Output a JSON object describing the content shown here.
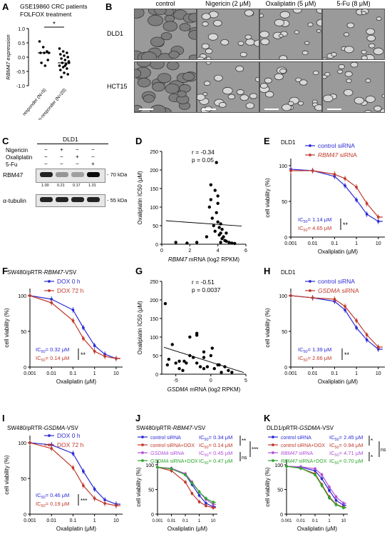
{
  "panels": {
    "A": {
      "label": "A",
      "title_line1": "GSE19860 CRC patients",
      "title_line2": "FOLFOX treatment",
      "ylabel": "RBM47 expression",
      "sig": "*",
      "yticks": [
        "1.0",
        "0.5",
        "0.0",
        "-0.5",
        "-1.0"
      ],
      "groups": [
        "responder (N=9)",
        "non-responder (N=20)"
      ]
    },
    "B": {
      "label": "B",
      "columns": [
        "control",
        "Nigericin (2 μM)",
        "Oxaliplatin (5 μM)",
        "5-Fu (8 μM)"
      ],
      "rows": [
        "DLD1",
        "HCT15"
      ]
    },
    "C": {
      "label": "C",
      "cell_line": "DLD1",
      "treatments": [
        "Nigericin",
        "Oxaliplatin",
        "5-Fu"
      ],
      "signs": [
        [
          "−",
          "+",
          "−",
          "−"
        ],
        [
          "−",
          "−",
          "+",
          "−"
        ],
        [
          "−",
          "−",
          "−",
          "+"
        ]
      ],
      "bands": [
        "RBM47",
        "α-tubulin"
      ],
      "kda": [
        "70 kDa",
        "55 kDa"
      ],
      "quant": [
        "1.00",
        "0.21",
        "0.17",
        "1.31"
      ]
    },
    "D": {
      "label": "D",
      "r": "r = -0.34",
      "p": "p = 0.05",
      "ylabel": "Oxaliplatin IC50 (μM)",
      "xlabel": "RBM47 mRNA (log2 RPKM)",
      "xticks": [
        "0",
        "2",
        "4",
        "6"
      ],
      "yticks": [
        "0",
        "50",
        "100",
        "150",
        "200",
        "250"
      ]
    },
    "E": {
      "label": "E",
      "cell": "DLD1",
      "legend": [
        "control siRNA",
        "RBM47 siRNA"
      ],
      "ic1": "IC50= 1.14 μM",
      "ic2": "IC50= 4.65 μM",
      "sig": "**"
    },
    "F": {
      "label": "F",
      "cell": "SW480/pRTR-RBM47-VSV",
      "legend": [
        "DOX 0 h",
        "DOX 72 h"
      ],
      "ic1": "IC50= 0.32 μM",
      "ic2": "IC50= 0.14 μM",
      "sig": "**"
    },
    "G": {
      "label": "G",
      "r": "r = -0.51",
      "p": "p = 0.0037",
      "ylabel": "Oxaliplatin IC50 (μM)",
      "xlabel": "GSDMA mRNA (log2 RPKM)",
      "xticks": [
        "-5",
        "0",
        "5"
      ],
      "yticks": [
        "0",
        "50",
        "100",
        "150",
        "200",
        "250"
      ]
    },
    "H": {
      "label": "H",
      "cell": "DLD1",
      "legend": [
        "control siRNA",
        "GSDMA siRNA"
      ],
      "ic1": "IC50= 1.39 μM",
      "ic2": "IC50= 2.66 μM",
      "sig": "**"
    },
    "I": {
      "label": "I",
      "cell": "SW480/pRTR-GSDMA-VSV",
      "legend": [
        "DOX 0 h",
        "DOX 72 h"
      ],
      "ic1": "IC50= 0.46 μM",
      "ic2": "IC50= 0.19 μM",
      "sig": "***"
    },
    "J": {
      "label": "J",
      "cell": "SW480/pRTR-RBM47-VSV",
      "legend": [
        "control siRNA",
        "control siRNA+DOX",
        "GSDMA siRNA",
        "GSDMA siRNA+DOX"
      ],
      "ics": [
        "IC50= 0.34 μM",
        "IC50= 0.14 μM",
        "IC50= 0.45 μM",
        "IC50= 0.47 μM"
      ],
      "sigs": [
        "**",
        "ns",
        "***"
      ]
    },
    "K": {
      "label": "K",
      "cell": "DLD1/pRTR-GSDMA-VSV",
      "legend": [
        "control siRNA",
        "control siRNA+DOX",
        "RBM47 siRNA",
        "RBM47 siRNA+DOX"
      ],
      "ics": [
        "IC50= 2.45 μM",
        "IC50= 0.94 μM",
        "IC50= 4.71 μM",
        "IC50= 0.70 μM"
      ],
      "sigs": [
        "*",
        "*",
        "ns"
      ]
    }
  },
  "common": {
    "viability_label": "cell viability (%)",
    "oxa_label": "Oxaliplatin (μM)",
    "xticks": [
      "0.001",
      "0.01",
      "0.1",
      "1",
      "10"
    ],
    "yticks": [
      "0",
      "50",
      "100"
    ]
  },
  "colors": {
    "blue": "#2b2bd6",
    "red": "#c0392b",
    "purple": "#b04fd6",
    "green": "#2aa62a"
  },
  "chart_data": [
    {
      "type": "scatter",
      "panel": "A",
      "categories": [
        "responder (N=9)",
        "non-responder (N=20)"
      ],
      "series": [
        {
          "name": "responder (N=9)",
          "values": [
            0.55,
            0.35,
            0.2,
            0.15,
            0.15,
            -0.1,
            -0.2,
            -0.3,
            0.15
          ]
        },
        {
          "name": "non-responder (N=20)",
          "values": [
            0.3,
            0.2,
            0.15,
            0.1,
            0.05,
            0.0,
            -0.05,
            -0.1,
            -0.15,
            -0.2,
            -0.25,
            -0.3,
            -0.35,
            -0.4,
            -0.45,
            -0.55,
            -0.6,
            -0.7,
            -0.3,
            -0.2
          ]
        }
      ],
      "ylim": [
        -1,
        1
      ]
    },
    {
      "type": "scatter",
      "panel": "D",
      "x": [
        1,
        1.8,
        2.5,
        3.2,
        3.4,
        3.5,
        3.6,
        3.7,
        3.8,
        3.8,
        3.9,
        4.0,
        4.0,
        4.1,
        4.1,
        4.2,
        4.2,
        4.3,
        4.3,
        4.4,
        4.5,
        4.6,
        4.8,
        5.0,
        5.2,
        3.5,
        3.9,
        4.0,
        4.6,
        4.2
      ],
      "y": [
        5,
        3,
        5,
        20,
        100,
        120,
        70,
        50,
        35,
        145,
        220,
        110,
        60,
        45,
        25,
        30,
        55,
        40,
        15,
        20,
        10,
        8,
        5,
        3,
        2,
        160,
        85,
        130,
        30,
        5
      ],
      "xlim": [
        0,
        6
      ],
      "ylim": [
        0,
        250
      ]
    },
    {
      "type": "scatter",
      "panel": "G",
      "x": [
        -6.5,
        -6,
        -5.5,
        -5,
        -4.5,
        -4,
        -3.5,
        -3,
        -3,
        -2.5,
        -2,
        -2,
        -1.5,
        -1,
        -1,
        -0.5,
        0,
        0.5,
        1,
        1.5,
        2,
        2.5,
        3,
        -2,
        -1,
        -6.2,
        0.2,
        -3.8,
        -4.5,
        1.2
      ],
      "y": [
        190,
        40,
        80,
        30,
        35,
        10,
        30,
        100,
        50,
        45,
        30,
        110,
        20,
        60,
        45,
        20,
        50,
        15,
        25,
        5,
        20,
        10,
        5,
        105,
        15,
        25,
        70,
        35,
        15,
        25
      ],
      "xlim": [
        -7,
        5
      ],
      "ylim": [
        0,
        250
      ]
    },
    {
      "type": "line",
      "panel": "E",
      "x": [
        0.001,
        0.01,
        0.1,
        0.3,
        1,
        3,
        10
      ],
      "series": [
        {
          "name": "control siRNA",
          "values": [
            95,
            93,
            85,
            72,
            52,
            32,
            22
          ]
        },
        {
          "name": "RBM47 siRNA",
          "values": [
            93,
            93,
            88,
            82,
            70,
            47,
            28
          ]
        }
      ],
      "ylim": [
        0,
        110
      ]
    },
    {
      "type": "line",
      "panel": "F",
      "x": [
        0.001,
        0.01,
        0.1,
        0.3,
        1,
        3,
        10
      ],
      "series": [
        {
          "name": "DOX 0 h",
          "values": [
            100,
            95,
            80,
            55,
            30,
            18,
            12
          ]
        },
        {
          "name": "DOX 72 h",
          "values": [
            100,
            90,
            65,
            40,
            22,
            15,
            12
          ]
        }
      ],
      "ylim": [
        0,
        110
      ]
    },
    {
      "type": "line",
      "panel": "H",
      "x": [
        0.001,
        0.01,
        0.1,
        0.3,
        1,
        3,
        10
      ],
      "series": [
        {
          "name": "control siRNA",
          "values": [
            100,
            97,
            92,
            80,
            55,
            38,
            25
          ]
        },
        {
          "name": "GSDMA siRNA",
          "values": [
            100,
            97,
            95,
            85,
            65,
            45,
            28
          ]
        }
      ],
      "ylim": [
        0,
        110
      ]
    },
    {
      "type": "line",
      "panel": "I",
      "x": [
        0.001,
        0.01,
        0.1,
        0.3,
        1,
        3,
        10
      ],
      "series": [
        {
          "name": "DOX 0 h",
          "values": [
            100,
            97,
            85,
            60,
            35,
            20,
            14
          ]
        },
        {
          "name": "DOX 72 h",
          "values": [
            100,
            92,
            65,
            40,
            22,
            15,
            12
          ]
        }
      ],
      "ylim": [
        0,
        110
      ]
    },
    {
      "type": "line",
      "panel": "J",
      "x": [
        0.001,
        0.01,
        0.1,
        0.3,
        1,
        3,
        10
      ],
      "series": [
        {
          "name": "control siRNA",
          "values": [
            95,
            92,
            80,
            60,
            38,
            22,
            15
          ]
        },
        {
          "name": "control siRNA+DOX",
          "values": [
            95,
            88,
            65,
            42,
            25,
            17,
            13
          ]
        },
        {
          "name": "GSDMA siRNA",
          "values": [
            95,
            93,
            82,
            65,
            45,
            30,
            20
          ]
        },
        {
          "name": "GSDMA siRNA+DOX",
          "values": [
            95,
            92,
            80,
            63,
            45,
            32,
            24
          ]
        }
      ],
      "ylim": [
        0,
        110
      ]
    },
    {
      "type": "line",
      "panel": "K",
      "x": [
        0.001,
        0.01,
        0.1,
        0.3,
        1,
        3,
        10
      ],
      "series": [
        {
          "name": "control siRNA",
          "values": [
            97,
            95,
            88,
            72,
            48,
            28,
            18
          ]
        },
        {
          "name": "control siRNA+DOX",
          "values": [
            97,
            93,
            82,
            60,
            35,
            20,
            14
          ]
        },
        {
          "name": "RBM47 siRNA",
          "values": [
            97,
            96,
            92,
            80,
            55,
            35,
            22
          ]
        },
        {
          "name": "RBM47 siRNA+DOX",
          "values": [
            97,
            93,
            80,
            58,
            33,
            19,
            13
          ]
        }
      ],
      "ylim": [
        0,
        110
      ]
    }
  ]
}
